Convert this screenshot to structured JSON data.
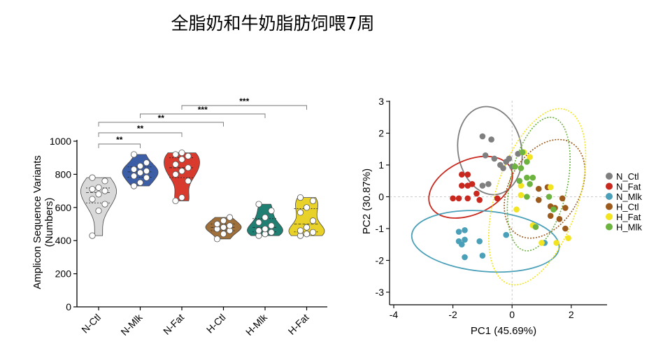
{
  "title": "全脂奶和牛奶脂肪饲喂7周",
  "chart_data": [
    {
      "type": "violin",
      "ylabel_line1": "Amplicon Sequence Variants",
      "ylabel_line2": "(Numbers)",
      "ylim": [
        0,
        1000
      ],
      "yticks": [
        "0",
        "200",
        "400",
        "600",
        "800",
        "1000"
      ],
      "groups": [
        {
          "name": "N-Ctl",
          "color": "#d9d9d9",
          "points": [
            430,
            580,
            620,
            650,
            680,
            700,
            710,
            720,
            760,
            780
          ]
        },
        {
          "name": "N-Mlk",
          "color": "#3c5ea6",
          "points": [
            730,
            750,
            780,
            790,
            810,
            820,
            830,
            850,
            870,
            920
          ]
        },
        {
          "name": "N-Fat",
          "color": "#d93a2e",
          "points": [
            640,
            660,
            760,
            800,
            820,
            840,
            860,
            890,
            910,
            920,
            930
          ]
        },
        {
          "name": "H-Ctl",
          "color": "#a0703a",
          "points": [
            410,
            440,
            460,
            470,
            480,
            490,
            500,
            520,
            540
          ]
        },
        {
          "name": "H-Mlk",
          "color": "#1f7f72",
          "points": [
            430,
            440,
            450,
            460,
            470,
            490,
            510,
            540,
            580,
            620
          ]
        },
        {
          "name": "H-Fat",
          "color": "#e8d22a",
          "points": [
            430,
            440,
            450,
            460,
            480,
            520,
            570,
            600,
            640,
            660
          ]
        }
      ],
      "comparisons": [
        {
          "from": "N-Ctl",
          "to": "N-Mlk",
          "label": "**"
        },
        {
          "from": "N-Ctl",
          "to": "N-Fat",
          "label": "**"
        },
        {
          "from": "N-Ctl",
          "to": "H-Ctl",
          "label": "**"
        },
        {
          "from": "N-Mlk",
          "to": "H-Mlk",
          "label": "***"
        },
        {
          "from": "N-Fat",
          "to": "H-Fat",
          "label": "***"
        }
      ]
    },
    {
      "type": "scatter",
      "xlabel": "PC1 (45.69%)",
      "ylabel": "PC2 (30.87%)",
      "xlim": [
        -4.2,
        3.2
      ],
      "ylim": [
        -3.3,
        3.1
      ],
      "xticks": [
        "-4",
        "-2",
        "0",
        "2"
      ],
      "yticks": [
        "3",
        "2",
        "1",
        "0",
        "-1",
        "-2",
        "-3"
      ],
      "series": [
        {
          "name": "N_Ctl",
          "color": "#7f7f7f",
          "points": [
            [
              -1.0,
              1.9
            ],
            [
              -0.7,
              1.8
            ],
            [
              -0.9,
              1.3
            ],
            [
              -0.6,
              1.2
            ],
            [
              -0.4,
              1.0
            ],
            [
              -0.3,
              0.9
            ],
            [
              -0.2,
              1.1
            ],
            [
              -0.1,
              1.2
            ],
            [
              0.0,
              0.95
            ],
            [
              0.2,
              1.35
            ],
            [
              -0.8,
              0.4
            ],
            [
              -1.0,
              0.35
            ]
          ]
        },
        {
          "name": "N_Fat",
          "color": "#c9281e",
          "points": [
            [
              -1.7,
              0.7
            ],
            [
              -1.5,
              0.7
            ],
            [
              -1.7,
              0.35
            ],
            [
              -1.5,
              0.35
            ],
            [
              -1.35,
              0.4
            ],
            [
              -1.2,
              0.1
            ],
            [
              -2.0,
              -0.05
            ],
            [
              -1.8,
              -0.05
            ],
            [
              -1.5,
              -0.05
            ],
            [
              -1.1,
              -0.1
            ],
            [
              -0.5,
              -0.05
            ]
          ]
        },
        {
          "name": "N_Mlk",
          "color": "#4aa0b8",
          "points": [
            [
              -1.8,
              -1.1
            ],
            [
              -1.6,
              -1.05
            ],
            [
              -1.8,
              -1.4
            ],
            [
              -1.7,
              -1.5
            ],
            [
              -1.6,
              -1.35
            ],
            [
              -1.1,
              -1.4
            ],
            [
              -1.6,
              -1.9
            ],
            [
              -1.0,
              -1.85
            ],
            [
              -0.2,
              -1.2
            ],
            [
              1.1,
              -1.45
            ]
          ]
        },
        {
          "name": "H_Ctl",
          "color": "#9c5a1c",
          "points": [
            [
              0.9,
              0.25
            ],
            [
              1.2,
              0.3
            ],
            [
              1.7,
              -0.05
            ],
            [
              0.9,
              -0.1
            ],
            [
              1.3,
              -0.3
            ],
            [
              1.45,
              -0.35
            ],
            [
              1.6,
              -0.7
            ],
            [
              1.8,
              -0.35
            ],
            [
              1.8,
              -1.0
            ],
            [
              1.3,
              -0.6
            ]
          ]
        },
        {
          "name": "H_Fat",
          "color": "#f2e420",
          "points": [
            [
              0.4,
              1.4
            ],
            [
              0.6,
              1.25
            ],
            [
              0.3,
              0.35
            ],
            [
              1.3,
              0.3
            ],
            [
              0.3,
              0.05
            ],
            [
              0.7,
              -0.9
            ],
            [
              1.5,
              -1.45
            ],
            [
              1.0,
              -1.45
            ],
            [
              1.9,
              -1.3
            ],
            [
              0.15,
              -0.4
            ]
          ]
        },
        {
          "name": "H_Mlk",
          "color": "#6cb33f",
          "points": [
            [
              0.35,
              1.4
            ],
            [
              0.5,
              1.1
            ],
            [
              0.1,
              0.95
            ],
            [
              0.3,
              0.9
            ],
            [
              0.5,
              0.6
            ],
            [
              0.7,
              0.6
            ],
            [
              0.25,
              0.5
            ],
            [
              0.6,
              0.4
            ],
            [
              1.25,
              0.0
            ],
            [
              1.4,
              -0.4
            ],
            [
              0.8,
              -0.95
            ],
            [
              0.5,
              0.0
            ]
          ]
        }
      ],
      "ellipses": [
        {
          "name": "N_Ctl",
          "color": "#7f7f7f",
          "cx": -0.75,
          "cy": 1.45,
          "rx": 1.5,
          "ry": 1.0,
          "angle": 80,
          "dashed": false
        },
        {
          "name": "N_Fat",
          "color": "#c9281e",
          "cx": -1.4,
          "cy": 0.3,
          "rx": 1.5,
          "ry": 0.85,
          "angle": -25,
          "dashed": false
        },
        {
          "name": "N_Mlk",
          "color": "#4aa0b8",
          "cx": -0.9,
          "cy": -1.4,
          "rx": 2.5,
          "ry": 0.95,
          "angle": 5,
          "dashed": false
        },
        {
          "name": "H_Ctl",
          "color": "#9c5a1c",
          "cx": 1.1,
          "cy": 0.25,
          "rx": 1.8,
          "ry": 1.1,
          "angle": -60,
          "dashed": true
        },
        {
          "name": "H_Fat",
          "color": "#f2e420",
          "cx": 0.85,
          "cy": 0.0,
          "rx": 3.1,
          "ry": 1.3,
          "angle": -72,
          "dashed": true
        },
        {
          "name": "H_Mlk",
          "color": "#6cb33f",
          "cx": 0.9,
          "cy": 0.4,
          "rx": 2.3,
          "ry": 0.9,
          "angle": -78,
          "dashed": true
        }
      ]
    }
  ]
}
